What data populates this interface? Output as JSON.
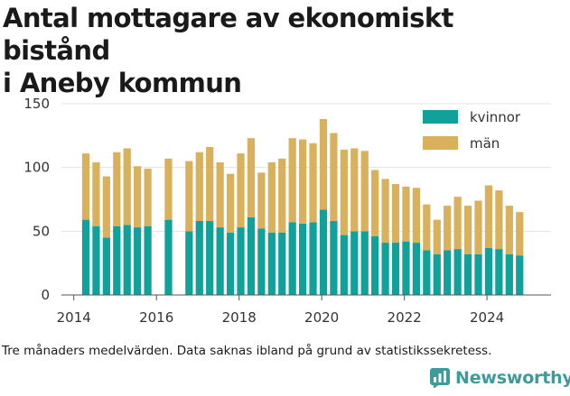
{
  "title_line1": "Antal mottagare av ekonomiskt bistånd",
  "title_line2": "i Aneby kommun",
  "caption": "Tre månaders medelvärden. Data saknas ibland på grund av statistikssekretess.",
  "brand": {
    "name": "Newsworthy",
    "icon": "newsworthy-logo-icon",
    "color": "#3d9b9b"
  },
  "chart_data": {
    "type": "bar",
    "stacked": true,
    "title": "Antal mottagare av ekonomiskt bistånd i Aneby kommun",
    "xlabel": "",
    "ylabel": "",
    "xlim": [
      2013.7,
      2025.55
    ],
    "ylim": [
      0,
      150
    ],
    "x_ticks": [
      "2014",
      "2016",
      "2018",
      "2020",
      "2022",
      "2024"
    ],
    "y_ticks": [
      "0",
      "50",
      "100",
      "150"
    ],
    "grid": true,
    "legend_position": "top-right",
    "colors": {
      "kvinnor": "#0fa19a",
      "män": "#d9b05c"
    },
    "x": [
      2014.29,
      2014.54,
      2014.79,
      2015.04,
      2015.29,
      2015.54,
      2015.79,
      2016.04,
      2016.29,
      2016.54,
      2016.79,
      2017.04,
      2017.29,
      2017.54,
      2017.79,
      2018.04,
      2018.29,
      2018.54,
      2018.79,
      2019.04,
      2019.29,
      2019.54,
      2019.79,
      2020.04,
      2020.29,
      2020.54,
      2020.79,
      2021.04,
      2021.29,
      2021.54,
      2021.79,
      2022.04,
      2022.29,
      2022.54,
      2022.79,
      2023.04,
      2023.29,
      2023.54,
      2023.79,
      2024.04,
      2024.29,
      2024.54,
      2024.79
    ],
    "series": [
      {
        "name": "kvinnor",
        "values": [
          59,
          54,
          45,
          54,
          55,
          53,
          54,
          null,
          59,
          null,
          50,
          58,
          58,
          53,
          49,
          53,
          61,
          52,
          49,
          49,
          57,
          56,
          57,
          67,
          58,
          47,
          50,
          50,
          46,
          41,
          41,
          42,
          41,
          35,
          32,
          35,
          36,
          32,
          32,
          37,
          36,
          32,
          31
        ]
      },
      {
        "name": "män",
        "values": [
          52,
          50,
          48,
          58,
          60,
          48,
          45,
          null,
          48,
          null,
          55,
          54,
          58,
          51,
          46,
          58,
          62,
          44,
          55,
          58,
          66,
          66,
          62,
          71,
          69,
          67,
          65,
          63,
          52,
          50,
          46,
          43,
          43,
          36,
          27,
          35,
          41,
          38,
          42,
          49,
          46,
          38,
          34
        ]
      }
    ]
  }
}
